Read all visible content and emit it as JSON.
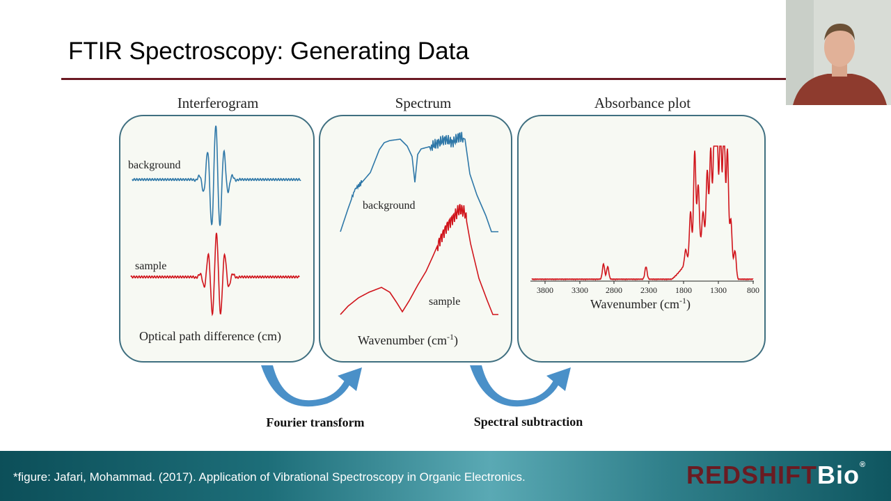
{
  "slide": {
    "title": "FTIR Spectroscopy: Generating Data"
  },
  "panels": {
    "interferogram": {
      "title": "Interferogram",
      "background_label": "background",
      "sample_label": "sample",
      "axis_label": "Optical path difference (cm)"
    },
    "spectrum": {
      "title": "Spectrum",
      "background_label": "background",
      "sample_label": "sample",
      "axis_label_main": "Wavenumber (cm",
      "axis_label_sup": "-1",
      "axis_label_end": ")"
    },
    "absorbance": {
      "title": "Absorbance plot",
      "ticks": [
        "3800",
        "3300",
        "2800",
        "2300",
        "1800",
        "1300",
        "800"
      ],
      "axis_label_main": "Wavenumber (cm",
      "axis_label_sup": "-1",
      "axis_label_end": ")"
    }
  },
  "arrows": {
    "fourier": "Fourier transform",
    "subtraction": "Spectral subtraction"
  },
  "footer": {
    "citation": "*figure: Jafari, Mohammad. (2017). Application of Vibrational Spectroscopy in Organic Electronics.",
    "logo_red": "REDSHIFT",
    "logo_white": "Bio",
    "logo_reg": "®"
  },
  "colors": {
    "title_rule": "#6b1a23",
    "panel_border": "#3f6f80",
    "background_curve": "#2f78a8",
    "sample_curve": "#d0141b",
    "arrow": "#4a90c8",
    "footer_teal": "#1d6e79",
    "logo_red": "#6a1b22"
  }
}
